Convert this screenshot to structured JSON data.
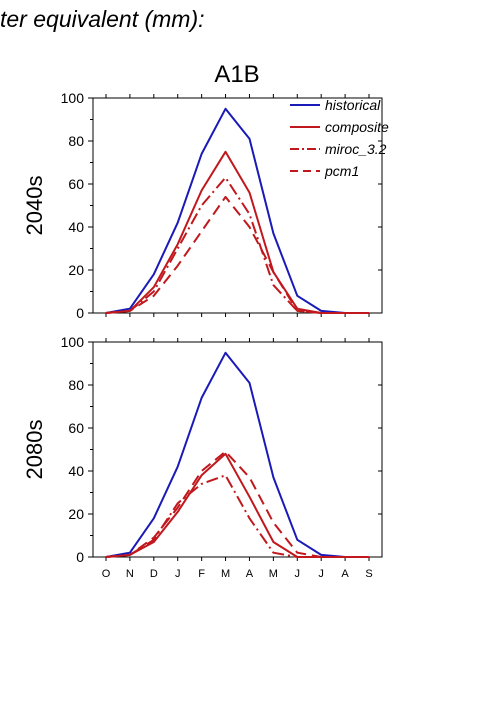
{
  "figure": {
    "header": "ter equivalent (mm):",
    "scenario_title": "A1B"
  },
  "chart_data": [
    {
      "type": "line",
      "ylabel": "2040s",
      "ylim": [
        0,
        100
      ],
      "yticks": [
        "0",
        "20",
        "40",
        "60",
        "80",
        "100"
      ],
      "categories": [
        "O",
        "N",
        "D",
        "J",
        "F",
        "M",
        "A",
        "M",
        "J",
        "J",
        "A",
        "S"
      ],
      "show_category_labels": false,
      "legend": "top-right",
      "series": [
        {
          "name": "historical",
          "color": "#1a1ab8",
          "dash": "solid",
          "values": [
            0,
            2,
            18,
            42,
            74,
            95,
            81,
            37,
            8,
            1,
            0,
            0
          ]
        },
        {
          "name": "composite",
          "color": "#c0181c",
          "dash": "solid",
          "values": [
            0,
            1,
            12,
            32,
            57,
            75,
            56,
            19,
            2,
            0,
            0,
            0
          ]
        },
        {
          "name": "miroc_3.2",
          "color": "#c0181c",
          "dash": "dashdot",
          "values": [
            0,
            1,
            10,
            30,
            50,
            63,
            46,
            13,
            1,
            0,
            0,
            0
          ]
        },
        {
          "name": "pcm1",
          "color": "#c0181c",
          "dash": "dash",
          "values": [
            0,
            1,
            8,
            22,
            38,
            54,
            40,
            19,
            1,
            0,
            0,
            0
          ]
        }
      ]
    },
    {
      "type": "line",
      "ylabel": "2080s",
      "ylim": [
        0,
        100
      ],
      "yticks": [
        "0",
        "20",
        "40",
        "60",
        "80",
        "100"
      ],
      "categories": [
        "O",
        "N",
        "D",
        "J",
        "F",
        "M",
        "A",
        "M",
        "J",
        "J",
        "A",
        "S"
      ],
      "show_category_labels": true,
      "series": [
        {
          "name": "historical",
          "color": "#1a1ab8",
          "dash": "solid",
          "values": [
            0,
            2,
            18,
            42,
            74,
            95,
            81,
            37,
            8,
            1,
            0,
            0
          ]
        },
        {
          "name": "composite",
          "color": "#c0181c",
          "dash": "solid",
          "values": [
            0,
            1,
            7,
            21,
            38,
            48,
            28,
            7,
            0,
            0,
            0,
            0
          ]
        },
        {
          "name": "miroc_3.2",
          "color": "#c0181c",
          "dash": "dashdot",
          "values": [
            0,
            1,
            8,
            25,
            34,
            38,
            18,
            2,
            0,
            0,
            0,
            0
          ]
        },
        {
          "name": "pcm1",
          "color": "#c0181c",
          "dash": "dash",
          "values": [
            0,
            1,
            9,
            23,
            40,
            49,
            37,
            16,
            2,
            0,
            0,
            0
          ]
        }
      ]
    }
  ]
}
